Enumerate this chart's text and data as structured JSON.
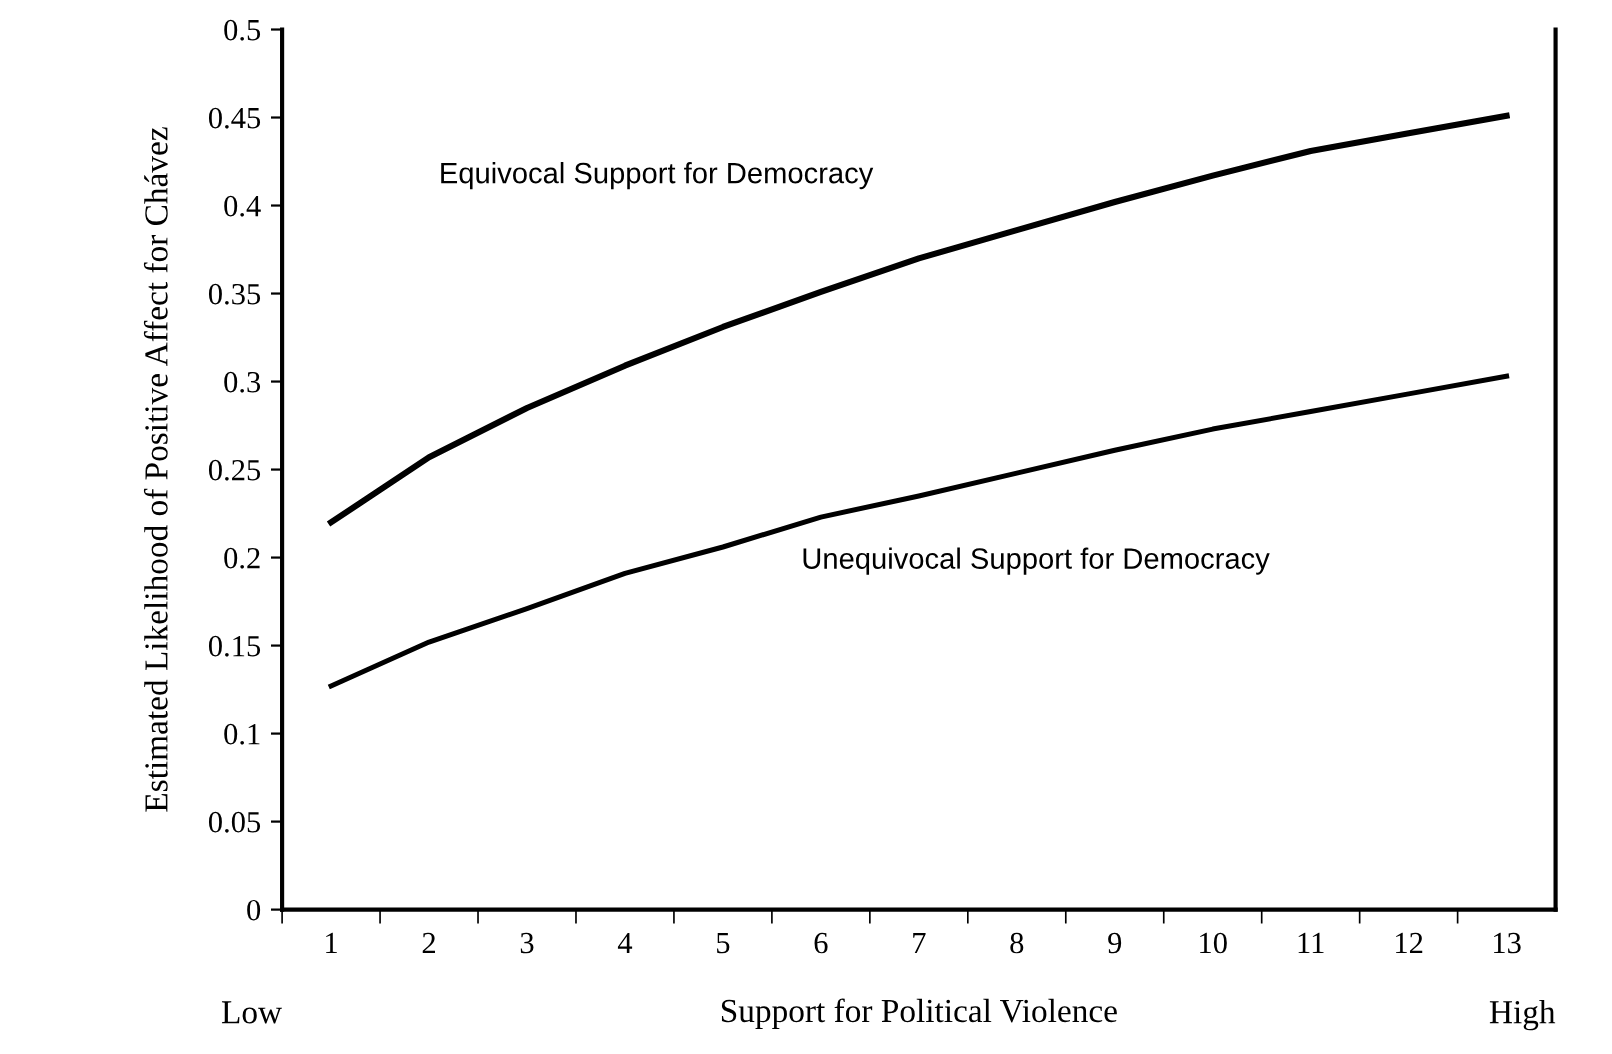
{
  "chart_data": {
    "type": "line",
    "xlabel": "Support for Political Violence",
    "ylabel": "Estimated Likelihood of Positive Affect for Chávez",
    "categories": [
      "1",
      "2",
      "3",
      "4",
      "5",
      "6",
      "7",
      "8",
      "9",
      "10",
      "11",
      "12",
      "13"
    ],
    "series": [
      {
        "name": "Equivocal Support for Democracy",
        "color": "#000000",
        "values": [
          0.22,
          0.257,
          0.285,
          0.309,
          0.331,
          0.351,
          0.37,
          0.386,
          0.402,
          0.417,
          0.431,
          0.441,
          0.451
        ]
      },
      {
        "name": "Unequivocal Support for Democracy",
        "color": "#000000",
        "values": [
          0.127,
          0.152,
          0.171,
          0.191,
          0.206,
          0.223,
          0.235,
          0.248,
          0.261,
          0.273,
          0.283,
          0.293,
          0.303
        ]
      }
    ],
    "ylim": [
      0,
      0.5
    ],
    "yticks": [
      0,
      0.05,
      0.1,
      0.15,
      0.2,
      0.25,
      0.3,
      0.35,
      0.4,
      0.45,
      0.5
    ],
    "grid": false,
    "legend": false,
    "marker": "none",
    "line_style": "solid",
    "annotations": [
      "Low",
      "High"
    ]
  }
}
